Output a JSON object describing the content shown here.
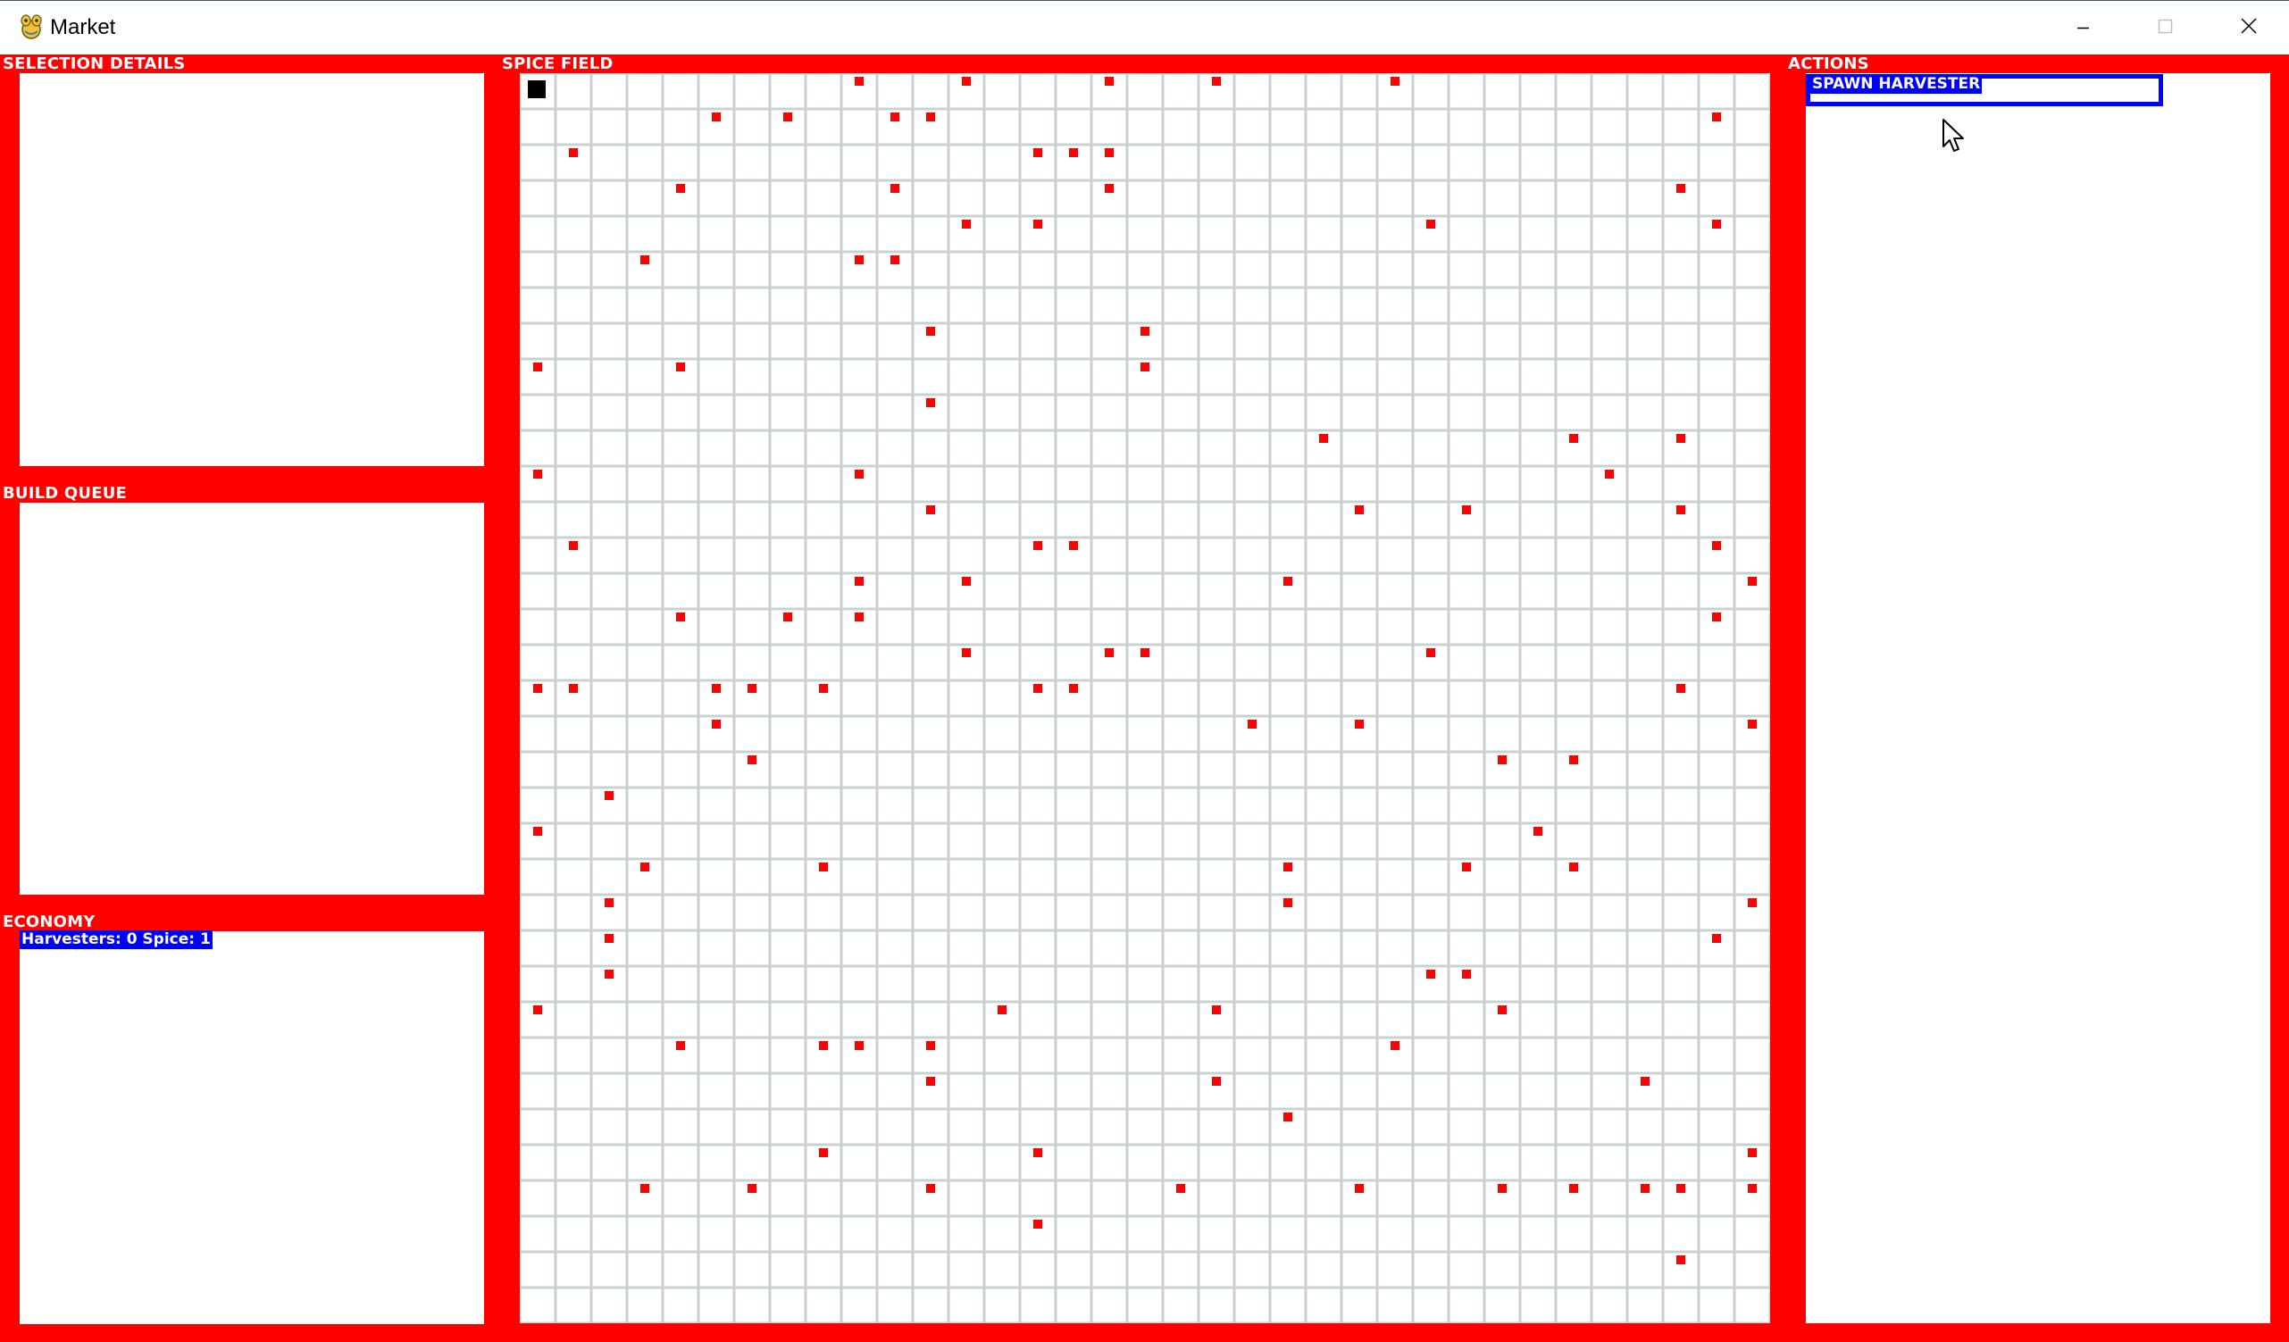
{
  "window": {
    "title": "Market",
    "app_icon": "pygame-snake-icon"
  },
  "title_controls": {
    "minimize": "minimize-icon",
    "maximize": "maximize-icon",
    "close": "close-icon"
  },
  "panels": {
    "selection_details": {
      "label": "SELECTION DETAILS"
    },
    "build_queue": {
      "label": "BUILD QUEUE"
    },
    "economy": {
      "label": "ECONOMY",
      "status": "Harvesters: 0 Spice: 1"
    },
    "spice_field": {
      "label": "SPICE FIELD"
    },
    "actions": {
      "label": "ACTIONS",
      "spawn_button": "SPAWN HARVESTER"
    }
  },
  "spice_grid": {
    "cols": 35,
    "rows": 35,
    "player_cell": [
      0,
      0
    ],
    "spice_cells": [
      [
        9,
        0
      ],
      [
        12,
        0
      ],
      [
        16,
        0
      ],
      [
        19,
        0
      ],
      [
        24,
        0
      ],
      [
        5,
        1
      ],
      [
        7,
        1
      ],
      [
        10,
        1
      ],
      [
        11,
        1
      ],
      [
        33,
        1
      ],
      [
        1,
        2
      ],
      [
        14,
        2
      ],
      [
        15,
        2
      ],
      [
        16,
        2
      ],
      [
        4,
        3
      ],
      [
        10,
        3
      ],
      [
        16,
        3
      ],
      [
        32,
        3
      ],
      [
        12,
        4
      ],
      [
        14,
        4
      ],
      [
        25,
        4
      ],
      [
        33,
        4
      ],
      [
        3,
        5
      ],
      [
        9,
        5
      ],
      [
        10,
        5
      ],
      [
        11,
        7
      ],
      [
        17,
        7
      ],
      [
        0,
        8
      ],
      [
        4,
        8
      ],
      [
        17,
        8
      ],
      [
        11,
        9
      ],
      [
        22,
        10
      ],
      [
        29,
        10
      ],
      [
        32,
        10
      ],
      [
        0,
        11
      ],
      [
        9,
        11
      ],
      [
        30,
        11
      ],
      [
        11,
        12
      ],
      [
        23,
        12
      ],
      [
        26,
        12
      ],
      [
        32,
        12
      ],
      [
        1,
        13
      ],
      [
        14,
        13
      ],
      [
        15,
        13
      ],
      [
        33,
        13
      ],
      [
        9,
        14
      ],
      [
        12,
        14
      ],
      [
        21,
        14
      ],
      [
        34,
        14
      ],
      [
        4,
        15
      ],
      [
        7,
        15
      ],
      [
        9,
        15
      ],
      [
        33,
        15
      ],
      [
        12,
        16
      ],
      [
        16,
        16
      ],
      [
        17,
        16
      ],
      [
        25,
        16
      ],
      [
        0,
        17
      ],
      [
        1,
        17
      ],
      [
        5,
        17
      ],
      [
        6,
        17
      ],
      [
        8,
        17
      ],
      [
        14,
        17
      ],
      [
        15,
        17
      ],
      [
        32,
        17
      ],
      [
        5,
        18
      ],
      [
        20,
        18
      ],
      [
        23,
        18
      ],
      [
        34,
        18
      ],
      [
        6,
        19
      ],
      [
        27,
        19
      ],
      [
        29,
        19
      ],
      [
        2,
        20
      ],
      [
        0,
        21
      ],
      [
        28,
        21
      ],
      [
        3,
        22
      ],
      [
        8,
        22
      ],
      [
        21,
        22
      ],
      [
        26,
        22
      ],
      [
        29,
        22
      ],
      [
        2,
        23
      ],
      [
        21,
        23
      ],
      [
        34,
        23
      ],
      [
        2,
        24
      ],
      [
        33,
        24
      ],
      [
        2,
        25
      ],
      [
        25,
        25
      ],
      [
        26,
        25
      ],
      [
        0,
        26
      ],
      [
        13,
        26
      ],
      [
        19,
        26
      ],
      [
        27,
        26
      ],
      [
        4,
        27
      ],
      [
        8,
        27
      ],
      [
        9,
        27
      ],
      [
        11,
        27
      ],
      [
        24,
        27
      ],
      [
        11,
        28
      ],
      [
        19,
        28
      ],
      [
        31,
        28
      ],
      [
        21,
        29
      ],
      [
        8,
        30
      ],
      [
        14,
        30
      ],
      [
        34,
        30
      ],
      [
        3,
        31
      ],
      [
        6,
        31
      ],
      [
        11,
        31
      ],
      [
        18,
        31
      ],
      [
        23,
        31
      ],
      [
        27,
        31
      ],
      [
        29,
        31
      ],
      [
        31,
        31
      ],
      [
        32,
        31
      ],
      [
        34,
        31
      ],
      [
        14,
        32
      ],
      [
        32,
        33
      ]
    ]
  },
  "colors": {
    "background": "#ff0000",
    "panel": "#ffffff",
    "grid_line": "#c8d2d2",
    "spice": "#ff0000",
    "player": "#000000",
    "highlight": "#0000ff"
  }
}
